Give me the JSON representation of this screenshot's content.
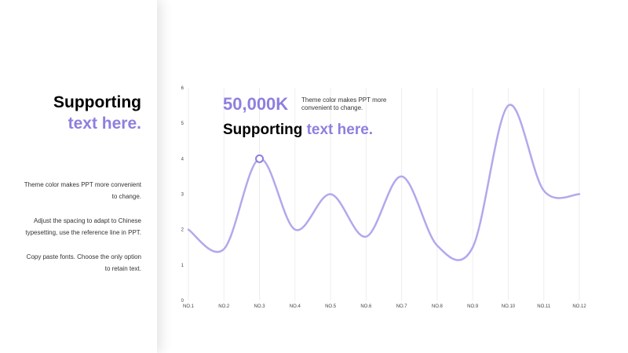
{
  "theme": {
    "accent": "#8e7fdf",
    "line": "#b3a8ec",
    "grid": "#eeeeee",
    "text": "#333333"
  },
  "left": {
    "title_line1": "Supporting",
    "title_line2": "text here.",
    "notes": [
      "Theme color makes PPT more convenient to change.",
      "Adjust the spacing to adapt to Chinese typesetting, use the reference line in PPT.",
      "Copy paste  fonts. Choose the only option to retain text."
    ]
  },
  "overlay": {
    "big_number": "50,000K",
    "small_note": "Theme color makes PPT more convenient to change.",
    "support_black": "Supporting ",
    "support_accent": "text here."
  },
  "chart_data": {
    "type": "line",
    "categories": [
      "NO.1",
      "NO.2",
      "NO.3",
      "NO.4",
      "NO.5",
      "NO.6",
      "NO.7",
      "NO.8",
      "NO.9",
      "NO.10",
      "NO.11",
      "NO.12"
    ],
    "values": [
      2.0,
      1.45,
      4.0,
      2.0,
      3.0,
      1.8,
      3.5,
      1.55,
      1.5,
      5.5,
      3.1,
      3.0
    ],
    "highlight_index": 2,
    "ylim": [
      0,
      6
    ],
    "yticks": [
      0,
      1,
      2,
      3,
      4,
      5,
      6
    ],
    "grid": "vertical",
    "title": "",
    "xlabel": "",
    "ylabel": ""
  }
}
